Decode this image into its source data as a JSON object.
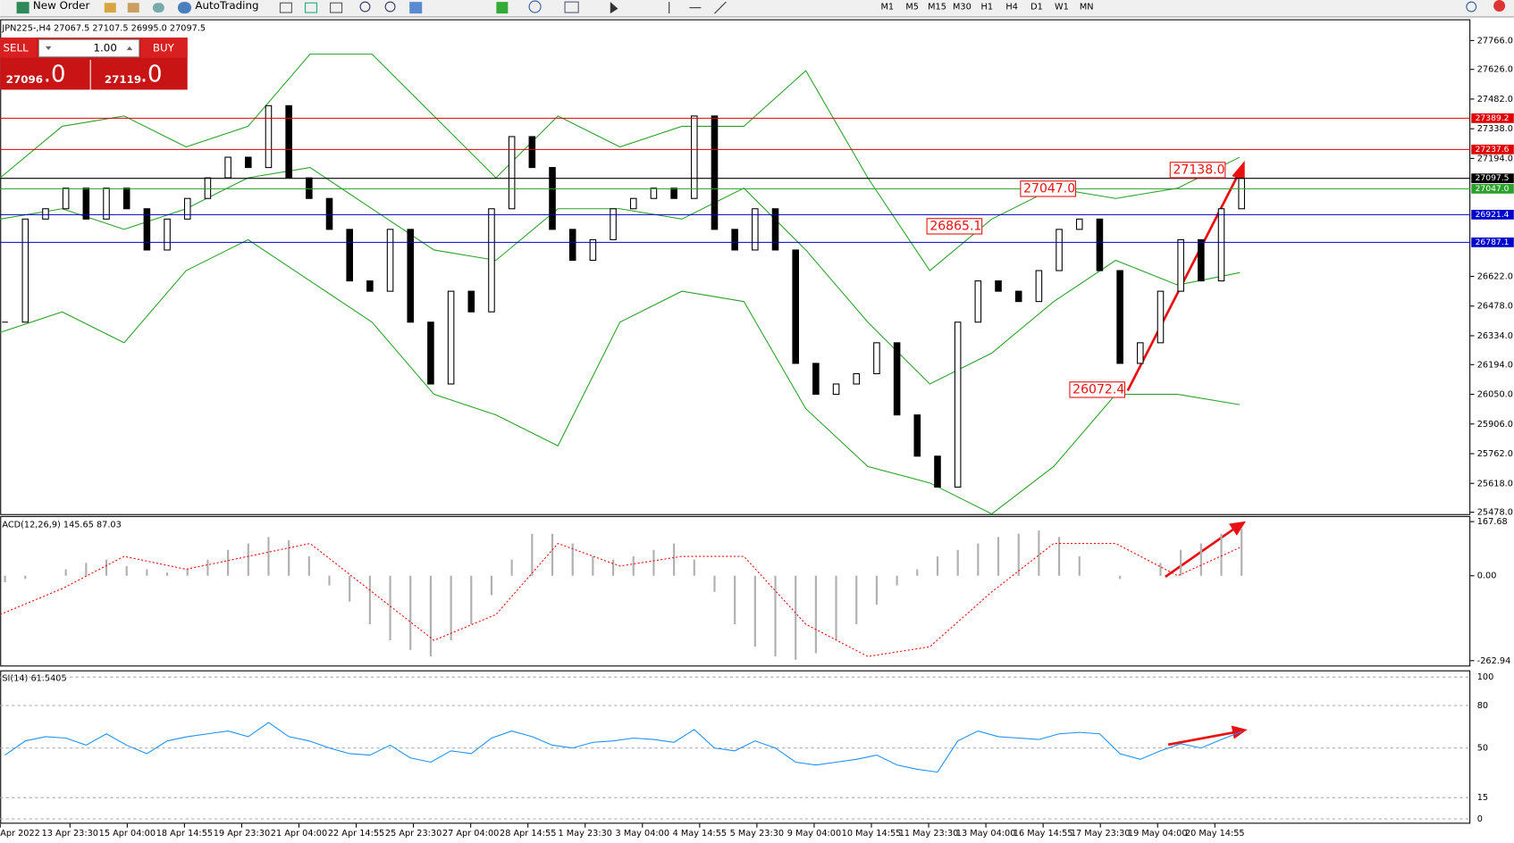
{
  "toolbar": {
    "new_order": "New Order",
    "auto_trading": "AutoTrading",
    "timeframes": [
      "M1",
      "M5",
      "M15",
      "M30",
      "H1",
      "H4",
      "D1",
      "W1",
      "MN"
    ]
  },
  "one_click": {
    "sell": "SELL",
    "lots": "1.00",
    "buy": "BUY",
    "sell_price": "27096",
    "sell_frac": ".0",
    "buy_price": "27119",
    "buy_frac": ".0"
  },
  "price_panel": {
    "header": "JPN225-,H4  27067.5 27107.5 26995.0 27097.5",
    "ylim": [
      25469,
      27869
    ],
    "yticks": [
      {
        "value": 27766,
        "label": "27766.0"
      },
      {
        "value": 27626,
        "label": "27626.0"
      },
      {
        "value": 27482,
        "label": "27482.0"
      },
      {
        "value": 27338,
        "label": "27338.0"
      },
      {
        "value": 27194,
        "label": "27194.0"
      },
      {
        "value": 26622,
        "label": "26622.0"
      },
      {
        "value": 26478,
        "label": "26478.0"
      },
      {
        "value": 26334,
        "label": "26334.0"
      },
      {
        "value": 26194,
        "label": "26194.0"
      },
      {
        "value": 26050,
        "label": "26050.0"
      },
      {
        "value": 25906,
        "label": "25906.0"
      },
      {
        "value": 25762,
        "label": "25762.0"
      },
      {
        "value": 25618,
        "label": "25618.0"
      },
      {
        "value": 25478,
        "label": "25478.0"
      }
    ],
    "closes": [
      26400,
      26900,
      26950,
      27050,
      26900,
      27050,
      26950,
      26750,
      26900,
      27000,
      27100,
      27200,
      27150,
      27450,
      27100,
      27000,
      26850,
      26600,
      26550,
      26850,
      26400,
      26100,
      26550,
      26450,
      26950,
      27300,
      27150,
      26850,
      26700,
      26800,
      26950,
      27000,
      27050,
      27000,
      27400,
      26850,
      26750,
      26950,
      26750,
      26200,
      26050,
      26100,
      26150,
      26300,
      25950,
      25750,
      25600,
      26400,
      26600,
      26550,
      26500,
      26650,
      26850,
      26900,
      26650,
      26200,
      26300,
      26550,
      26800,
      26600,
      26950,
      27097.5
    ],
    "bands": {
      "color": "#2ca02c",
      "upper": [
        27100,
        27350,
        27400,
        27250,
        27350,
        27700,
        27700,
        27400,
        27100,
        27400,
        27250,
        27350,
        27350,
        27620,
        27100,
        26650,
        26900,
        27050,
        27000,
        27050,
        27200
      ],
      "middle": [
        26900,
        26950,
        26850,
        26950,
        27100,
        27150,
        26950,
        26750,
        26700,
        26950,
        26950,
        26900,
        27050,
        26750,
        26400,
        26100,
        26250,
        26500,
        26700,
        26580,
        26640
      ],
      "lower": [
        26350,
        26450,
        26300,
        26650,
        26800,
        26600,
        26400,
        26050,
        25950,
        25800,
        26400,
        26550,
        26500,
        25980,
        25700,
        25620,
        25470,
        25700,
        26050,
        26050,
        26000
      ]
    },
    "levels": [
      {
        "price": 27389.2,
        "color": "#e00000"
      },
      {
        "price": 27237.6,
        "color": "#e00000"
      },
      {
        "price": 27097.5,
        "color": "#000000"
      },
      {
        "price": {
          "value": 27047,
          "label": "27047.0"
        },
        "color": "#2ca02c"
      },
      {
        "price": 26921.4,
        "color": "#0000cc"
      },
      {
        "price": 26787.1,
        "color": "#0000cc"
      }
    ],
    "annotations": [
      {
        "value": 27138,
        "label": "27138.0"
      },
      {
        "value": 27047,
        "label": "27047.0"
      },
      26865.1,
      26072.4
    ]
  },
  "macd_panel": {
    "header": "ACD(12,26,9) 145.65 87.03",
    "ylim": [
      -278,
      176
    ],
    "yticks": [
      167.68,
      {
        "value": 0,
        "label": "0.00"
      },
      -262.94
    ],
    "histogram": [
      -20,
      -10,
      0,
      20,
      40,
      50,
      30,
      20,
      10,
      20,
      50,
      80,
      100,
      120,
      110,
      60,
      -30,
      -80,
      -150,
      -200,
      -230,
      -250,
      -200,
      -150,
      -60,
      50,
      130,
      130,
      100,
      60,
      50,
      60,
      80,
      100,
      50,
      -50,
      -150,
      -220,
      -250,
      -260,
      -240,
      -200,
      -150,
      -90,
      -30,
      20,
      60,
      80,
      100,
      120,
      130,
      140,
      120,
      60,
      0,
      -10,
      0,
      40,
      80,
      100,
      130,
      145.65
    ],
    "signal": [
      -120,
      -40,
      60,
      20,
      60,
      100,
      -50,
      -200,
      -120,
      100,
      30,
      60,
      60,
      -150,
      -250,
      -220,
      -50,
      100,
      100,
      0,
      87.03
    ]
  },
  "rsi_panel": {
    "header": "SI(14) 61.5405",
    "ylim": [
      0,
      100
    ],
    "yticks": [
      100,
      80,
      50,
      15,
      0
    ],
    "values": [
      45,
      55,
      58,
      57,
      52,
      60,
      52,
      46,
      55,
      58,
      60,
      62,
      58,
      68,
      58,
      55,
      50,
      46,
      45,
      52,
      43,
      40,
      48,
      46,
      57,
      62,
      58,
      52,
      50,
      54,
      55,
      57,
      56,
      54,
      63,
      50,
      48,
      55,
      50,
      40,
      38,
      40,
      42,
      45,
      38,
      35,
      33,
      55,
      62,
      58,
      57,
      56,
      60,
      61,
      60,
      46,
      42,
      48,
      53,
      50,
      56,
      61.5405
    ]
  },
  "time_axis": {
    "labels": [
      "Apr 2022",
      "13 Apr 23:30",
      "15 Apr 04:00",
      "18 Apr 14:55",
      "19 Apr 23:30",
      "21 Apr 04:00",
      "22 Apr 14:55",
      "25 Apr 23:30",
      "27 Apr 04:00",
      "28 Apr 14:55",
      "1 May 23:30",
      "3 May 04:00",
      "4 May 14:55",
      "5 May 23:30",
      "9 May 04:00",
      "10 May 14:55",
      "11 May 23:30",
      "13 May 04:00",
      "16 May 14:55",
      "17 May 23:30",
      "19 May 04:00",
      "20 May 14:55"
    ]
  }
}
